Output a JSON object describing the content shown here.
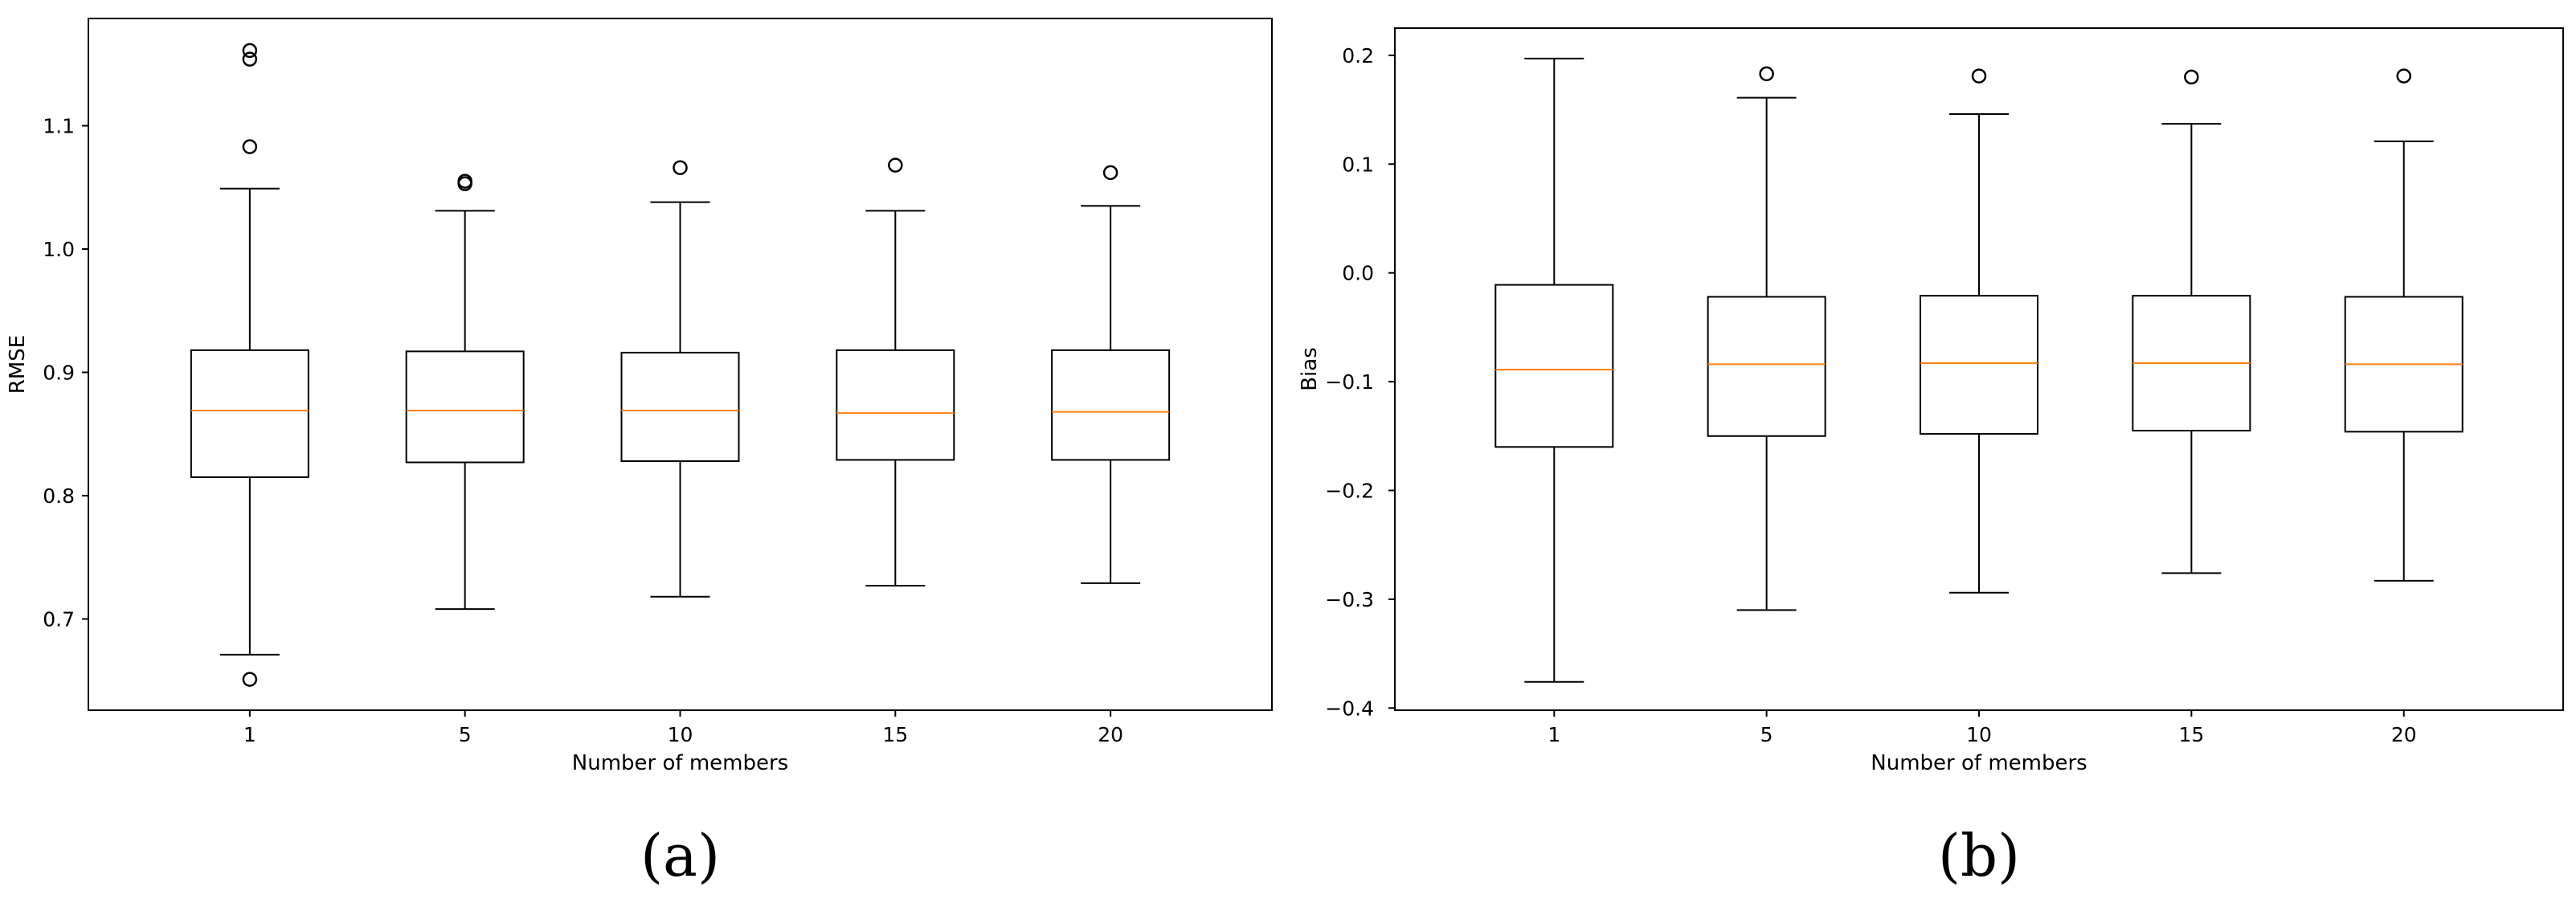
{
  "colors": {
    "median": "#ff7f0e",
    "box": "#000000",
    "background": "#ffffff"
  },
  "chart_data": [
    {
      "type": "box",
      "panel_label": "(a)",
      "xlabel": "Number of members",
      "ylabel": "RMSE",
      "categories": [
        "1",
        "5",
        "10",
        "15",
        "20"
      ],
      "ylim": [
        0.626,
        1.187
      ],
      "yticks": [
        "0.7",
        "0.8",
        "0.9",
        "1.0",
        "1.1"
      ],
      "ytick_values": [
        0.7,
        0.8,
        0.9,
        1.0,
        1.1
      ],
      "boxes": [
        {
          "whisker_low": 0.671,
          "q1": 0.815,
          "median": 0.869,
          "q3": 0.918,
          "whisker_high": 1.049,
          "fliers": [
            1.161,
            1.154,
            1.083,
            0.651
          ]
        },
        {
          "whisker_low": 0.708,
          "q1": 0.827,
          "median": 0.869,
          "q3": 0.917,
          "whisker_high": 1.031,
          "fliers": [
            1.055,
            1.053
          ]
        },
        {
          "whisker_low": 0.718,
          "q1": 0.828,
          "median": 0.869,
          "q3": 0.916,
          "whisker_high": 1.038,
          "fliers": [
            1.066
          ]
        },
        {
          "whisker_low": 0.727,
          "q1": 0.829,
          "median": 0.867,
          "q3": 0.918,
          "whisker_high": 1.031,
          "fliers": [
            1.068
          ]
        },
        {
          "whisker_low": 0.729,
          "q1": 0.829,
          "median": 0.868,
          "q3": 0.918,
          "whisker_high": 1.035,
          "fliers": [
            1.062
          ]
        }
      ]
    },
    {
      "type": "box",
      "panel_label": "(b)",
      "xlabel": "Number of members",
      "ylabel": "Bias",
      "categories": [
        "1",
        "5",
        "10",
        "15",
        "20"
      ],
      "ylim": [
        -0.402,
        0.225
      ],
      "yticks": [
        "0.2",
        "0.1",
        "0.0",
        "−0.1",
        "−0.2",
        "−0.3",
        "−0.4"
      ],
      "ytick_values": [
        0.2,
        0.1,
        0.0,
        -0.1,
        -0.2,
        -0.3,
        -0.4
      ],
      "boxes": [
        {
          "whisker_low": -0.376,
          "q1": -0.16,
          "median": -0.089,
          "q3": -0.011,
          "whisker_high": 0.197,
          "fliers": []
        },
        {
          "whisker_low": -0.31,
          "q1": -0.15,
          "median": -0.084,
          "q3": -0.022,
          "whisker_high": 0.161,
          "fliers": [
            0.183
          ]
        },
        {
          "whisker_low": -0.294,
          "q1": -0.148,
          "median": -0.083,
          "q3": -0.021,
          "whisker_high": 0.146,
          "fliers": [
            0.181
          ]
        },
        {
          "whisker_low": -0.276,
          "q1": -0.145,
          "median": -0.083,
          "q3": -0.021,
          "whisker_high": 0.137,
          "fliers": [
            0.18
          ]
        },
        {
          "whisker_low": -0.283,
          "q1": -0.146,
          "median": -0.084,
          "q3": -0.022,
          "whisker_high": 0.121,
          "fliers": [
            0.181
          ]
        }
      ]
    }
  ]
}
